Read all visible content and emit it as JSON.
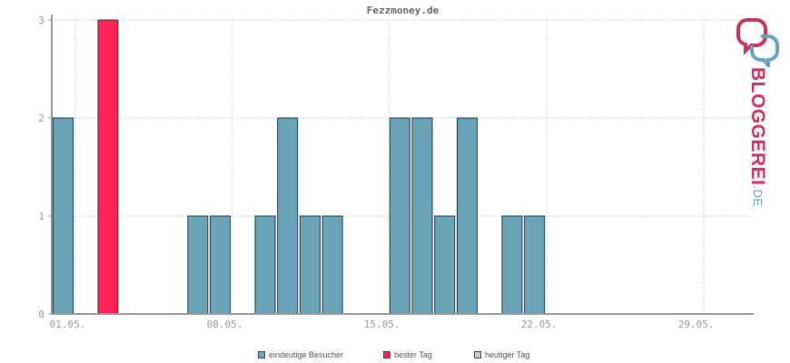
{
  "chart_data": {
    "type": "bar",
    "title": "Fezzmoney.de",
    "ylim": [
      0,
      3
    ],
    "yticks": [
      0,
      1,
      2,
      3
    ],
    "xtick_labels": [
      "01.05.",
      "08.05.",
      "15.05.",
      "22.05.",
      "29.05."
    ],
    "days": [
      "01.05.",
      "02.05.",
      "03.05.",
      "04.05.",
      "05.05.",
      "06.05.",
      "07.05.",
      "08.05.",
      "09.05.",
      "10.05.",
      "11.05.",
      "12.05.",
      "13.05.",
      "14.05.",
      "15.05.",
      "16.05.",
      "17.05.",
      "18.05.",
      "19.05.",
      "20.05.",
      "21.05.",
      "22.05.",
      "23.05.",
      "24.05.",
      "25.05.",
      "26.05.",
      "27.05.",
      "28.05.",
      "29.05.",
      "30.05.",
      "31.05."
    ],
    "series": [
      {
        "name": "eindeutige Besucher",
        "color": "#6ba3b8",
        "values": [
          2,
          0,
          3,
          0,
          0,
          0,
          1,
          1,
          0,
          1,
          2,
          1,
          1,
          0,
          0,
          2,
          2,
          1,
          2,
          0,
          1,
          1,
          0,
          0,
          0,
          0,
          0,
          0,
          0,
          0,
          0
        ]
      }
    ],
    "best_day": {
      "label": "03.05.",
      "value": 3,
      "color": "#ff2357"
    },
    "legend": [
      {
        "label": "eindeutige Besucher",
        "color": "#6ba3b8"
      },
      {
        "label": "bester Tag",
        "color": "#ff2357"
      },
      {
        "label": "heutiger Tag",
        "color": "#cccccc"
      }
    ],
    "grid": true,
    "legend_position": "bottom"
  },
  "brand": {
    "name": "BLOGGEREI",
    "suffix": ".DE",
    "primary_color": "#c4365d",
    "secondary_color": "#6aa2bb",
    "logo_icon": "speech-bubbles-icon"
  }
}
